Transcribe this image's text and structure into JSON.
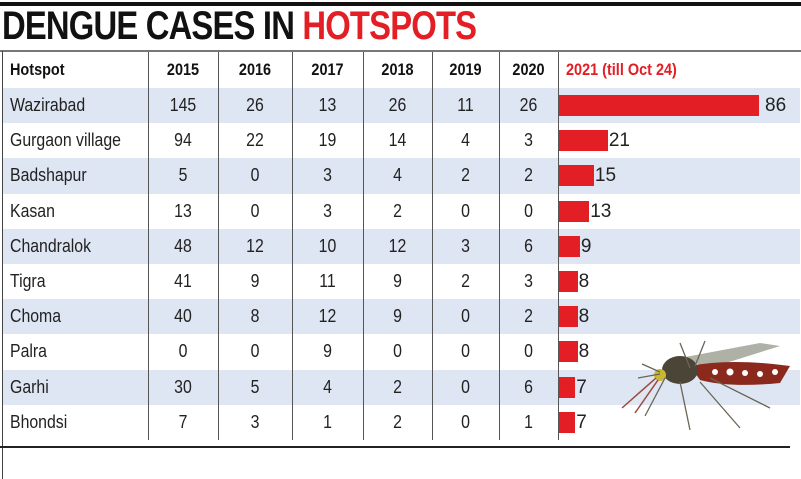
{
  "title": {
    "part1": "DENGUE CASES IN ",
    "part2": "HOTSPOTS"
  },
  "colors": {
    "accent": "#e31e24",
    "row_shade": "#dde6f2"
  },
  "chart_data": {
    "type": "table",
    "title": "DENGUE CASES IN HOTSPOTS",
    "columns": [
      "Hotspot",
      "2015",
      "2016",
      "2017",
      "2018",
      "2019",
      "2020",
      "2021 (till Oct 24)"
    ],
    "rows": [
      {
        "hotspot": "Wazirabad",
        "values": [
          145,
          26,
          13,
          26,
          11,
          26
        ],
        "y2021": 86
      },
      {
        "hotspot": "Gurgaon village",
        "values": [
          94,
          22,
          19,
          14,
          4,
          3
        ],
        "y2021": 21
      },
      {
        "hotspot": "Badshapur",
        "values": [
          5,
          0,
          3,
          4,
          2,
          2
        ],
        "y2021": 15
      },
      {
        "hotspot": "Kasan",
        "values": [
          13,
          0,
          3,
          2,
          0,
          0
        ],
        "y2021": 13
      },
      {
        "hotspot": "Chandralok",
        "values": [
          48,
          12,
          10,
          12,
          3,
          6
        ],
        "y2021": 9
      },
      {
        "hotspot": "Tigra",
        "values": [
          41,
          9,
          11,
          9,
          2,
          3
        ],
        "y2021": 8
      },
      {
        "hotspot": "Choma",
        "values": [
          40,
          8,
          12,
          9,
          0,
          2
        ],
        "y2021": 8
      },
      {
        "hotspot": "Palra",
        "values": [
          0,
          0,
          9,
          0,
          0,
          0
        ],
        "y2021": 8
      },
      {
        "hotspot": "Garhi",
        "values": [
          30,
          5,
          4,
          2,
          0,
          6
        ],
        "y2021": 7
      },
      {
        "hotspot": "Bhondsi",
        "values": [
          7,
          3,
          1,
          2,
          0,
          1
        ],
        "y2021": 7
      }
    ],
    "bar_series": "2021 (till Oct 24)",
    "bar_max": 86
  }
}
